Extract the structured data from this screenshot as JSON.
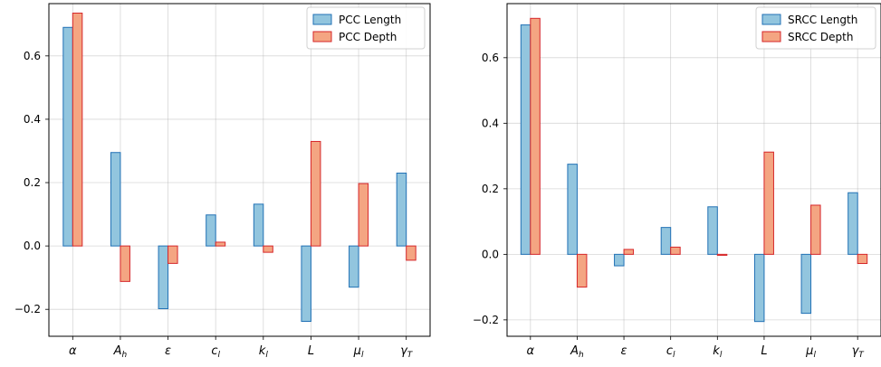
{
  "colors": {
    "length_fill": "#92c5de",
    "length_edge": "#2171b5",
    "depth_fill": "#f4a582",
    "depth_edge": "#d6262a"
  },
  "chart_data": [
    {
      "type": "bar",
      "categories": [
        "α",
        "A_h",
        "ε",
        "c_l",
        "k_l",
        "L",
        "μ_l",
        "γ_T"
      ],
      "series": [
        {
          "name": "PCC Length",
          "values": [
            0.69,
            0.295,
            -0.198,
            0.098,
            0.132,
            -0.238,
            -0.13,
            0.23
          ]
        },
        {
          "name": "PCC Depth",
          "values": [
            0.735,
            -0.112,
            -0.055,
            0.012,
            -0.02,
            0.33,
            0.197,
            -0.045
          ]
        }
      ],
      "ylim": [
        -0.285,
        0.765
      ],
      "yticks": [
        -0.2,
        0.0,
        0.2,
        0.4,
        0.6
      ],
      "ytick_labels": [
        "−0.2",
        "0.0",
        "0.2",
        "0.4",
        "0.6"
      ],
      "grid": true,
      "legend": "top-right"
    },
    {
      "type": "bar",
      "categories": [
        "α",
        "A_h",
        "ε",
        "c_l",
        "k_l",
        "L",
        "μ_l",
        "γ_T"
      ],
      "series": [
        {
          "name": "SRCC Length",
          "values": [
            0.7,
            0.275,
            -0.035,
            0.082,
            0.145,
            -0.205,
            -0.18,
            0.188
          ]
        },
        {
          "name": "SRCC Depth",
          "values": [
            0.72,
            -0.1,
            0.015,
            0.022,
            -0.003,
            0.312,
            0.15,
            -0.028
          ]
        }
      ],
      "ylim": [
        -0.25,
        0.765
      ],
      "yticks": [
        -0.2,
        0.0,
        0.2,
        0.4,
        0.6
      ],
      "ytick_labels": [
        "−0.2",
        "0.0",
        "0.2",
        "0.4",
        "0.6"
      ],
      "grid": true,
      "legend": "top-right"
    }
  ]
}
